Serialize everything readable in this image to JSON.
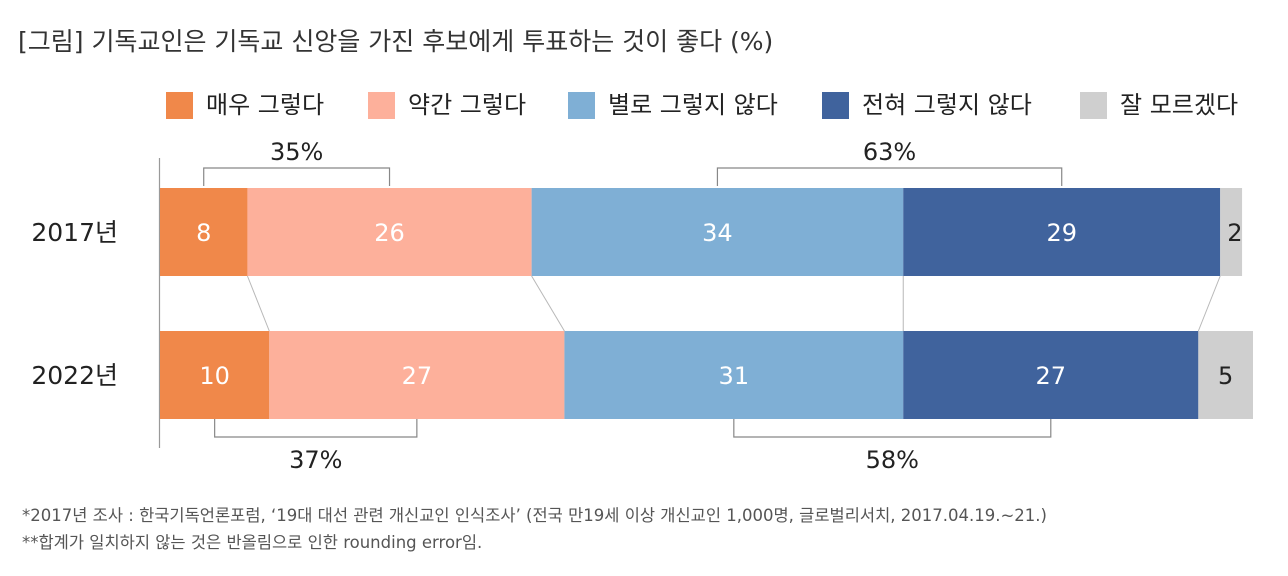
{
  "title": "[그림] 기독교인은 기독교 신앙을 가진 후보에게 투표하는 것이 좋다 (%)",
  "colors": {
    "매우 그렇다": "#f0884a",
    "약간 그렇다": "#fdb09b",
    "별로 그렇지 않다": "#7fafd5",
    "전혀 그렇지 않다": "#40639d",
    "잘 모르겠다": "#cfcfcf"
  },
  "chart_data": {
    "type": "bar",
    "orientation": "horizontal",
    "stacked": true,
    "categories": [
      "2017년",
      "2022년"
    ],
    "series": [
      {
        "name": "매우 그렇다",
        "values": [
          8,
          10
        ]
      },
      {
        "name": "약간 그렇다",
        "values": [
          26,
          27
        ]
      },
      {
        "name": "별로 그렇지 않다",
        "values": [
          34,
          31
        ]
      },
      {
        "name": "전혀 그렇지 않다",
        "values": [
          29,
          27
        ]
      },
      {
        "name": "잘 모르겠다",
        "values": [
          2,
          5
        ]
      }
    ],
    "xlim": [
      0,
      100
    ],
    "legend_position": "top",
    "brackets": [
      {
        "category": "2017년",
        "label": "35%",
        "from_series": 0,
        "to_series": 1,
        "side": "above"
      },
      {
        "category": "2017년",
        "label": "63%",
        "from_series": 2,
        "to_series": 3,
        "side": "above"
      },
      {
        "category": "2022년",
        "label": "37%",
        "from_series": 0,
        "to_series": 1,
        "side": "below"
      },
      {
        "category": "2022년",
        "label": "58%",
        "from_series": 2,
        "to_series": 3,
        "side": "below"
      }
    ]
  },
  "notes": [
    "*2017년 조사 : 한국기독언론포럼, ‘19대 대선 관련 개신교인 인식조사’ (전국 만19세 이상 개신교인 1,000명, 글로벌리서치, 2017.04.19.~21.)",
    "**합계가 일치하지 않는 것은 반올림으로 인한 rounding error임."
  ]
}
